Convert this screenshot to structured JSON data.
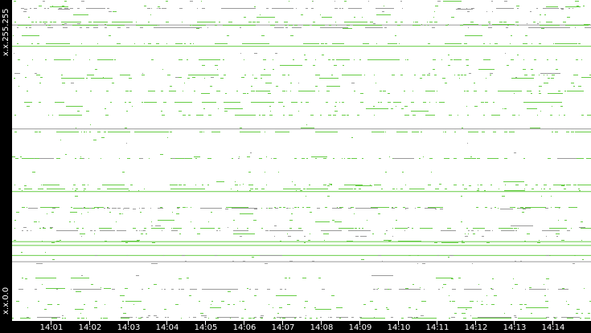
{
  "chart_data": {
    "type": "scatter",
    "title": "",
    "xlabel": "",
    "ylabel": "",
    "x_range": [
      "14:00",
      "14:15"
    ],
    "x_ticks": [
      "14:01",
      "14:02",
      "14:03",
      "14:04",
      "14:05",
      "14:06",
      "14:07",
      "14:08",
      "14:09",
      "14:10",
      "14:11",
      "14:12",
      "14:13",
      "14:14"
    ],
    "y_labels": {
      "top": "x.x.255.255",
      "bottom": "x.x.0.0"
    },
    "y_range_third_octet": [
      0,
      255
    ],
    "grid": false,
    "colors": {
      "connection": "#66cc44",
      "other": "#999999",
      "background": "#ffffff",
      "frame": "#000000"
    },
    "prominent_lines": [
      {
        "octet": 236,
        "color": "#999999",
        "span": [
          "14:00",
          "14:15"
        ]
      },
      {
        "octet": 219,
        "color": "#66cc44",
        "span": [
          "14:00",
          "14:15"
        ]
      },
      {
        "octet": 153,
        "color": "#999999",
        "span": [
          "14:00",
          "14:15"
        ]
      },
      {
        "octet": 103,
        "color": "#66cc44",
        "span": [
          "14:00",
          "14:15"
        ]
      },
      {
        "octet": 63,
        "color": "#66cc44",
        "span": [
          "14:00",
          "14:15"
        ]
      },
      {
        "octet": 60,
        "color": "#66cc44",
        "span": [
          "14:00",
          "14:15"
        ]
      },
      {
        "octet": 52,
        "color": "#66cc44",
        "span": [
          "14:00",
          "14:15"
        ]
      },
      {
        "octet": 47,
        "color": "#999999",
        "span": [
          "14:00",
          "14:15"
        ]
      }
    ]
  }
}
